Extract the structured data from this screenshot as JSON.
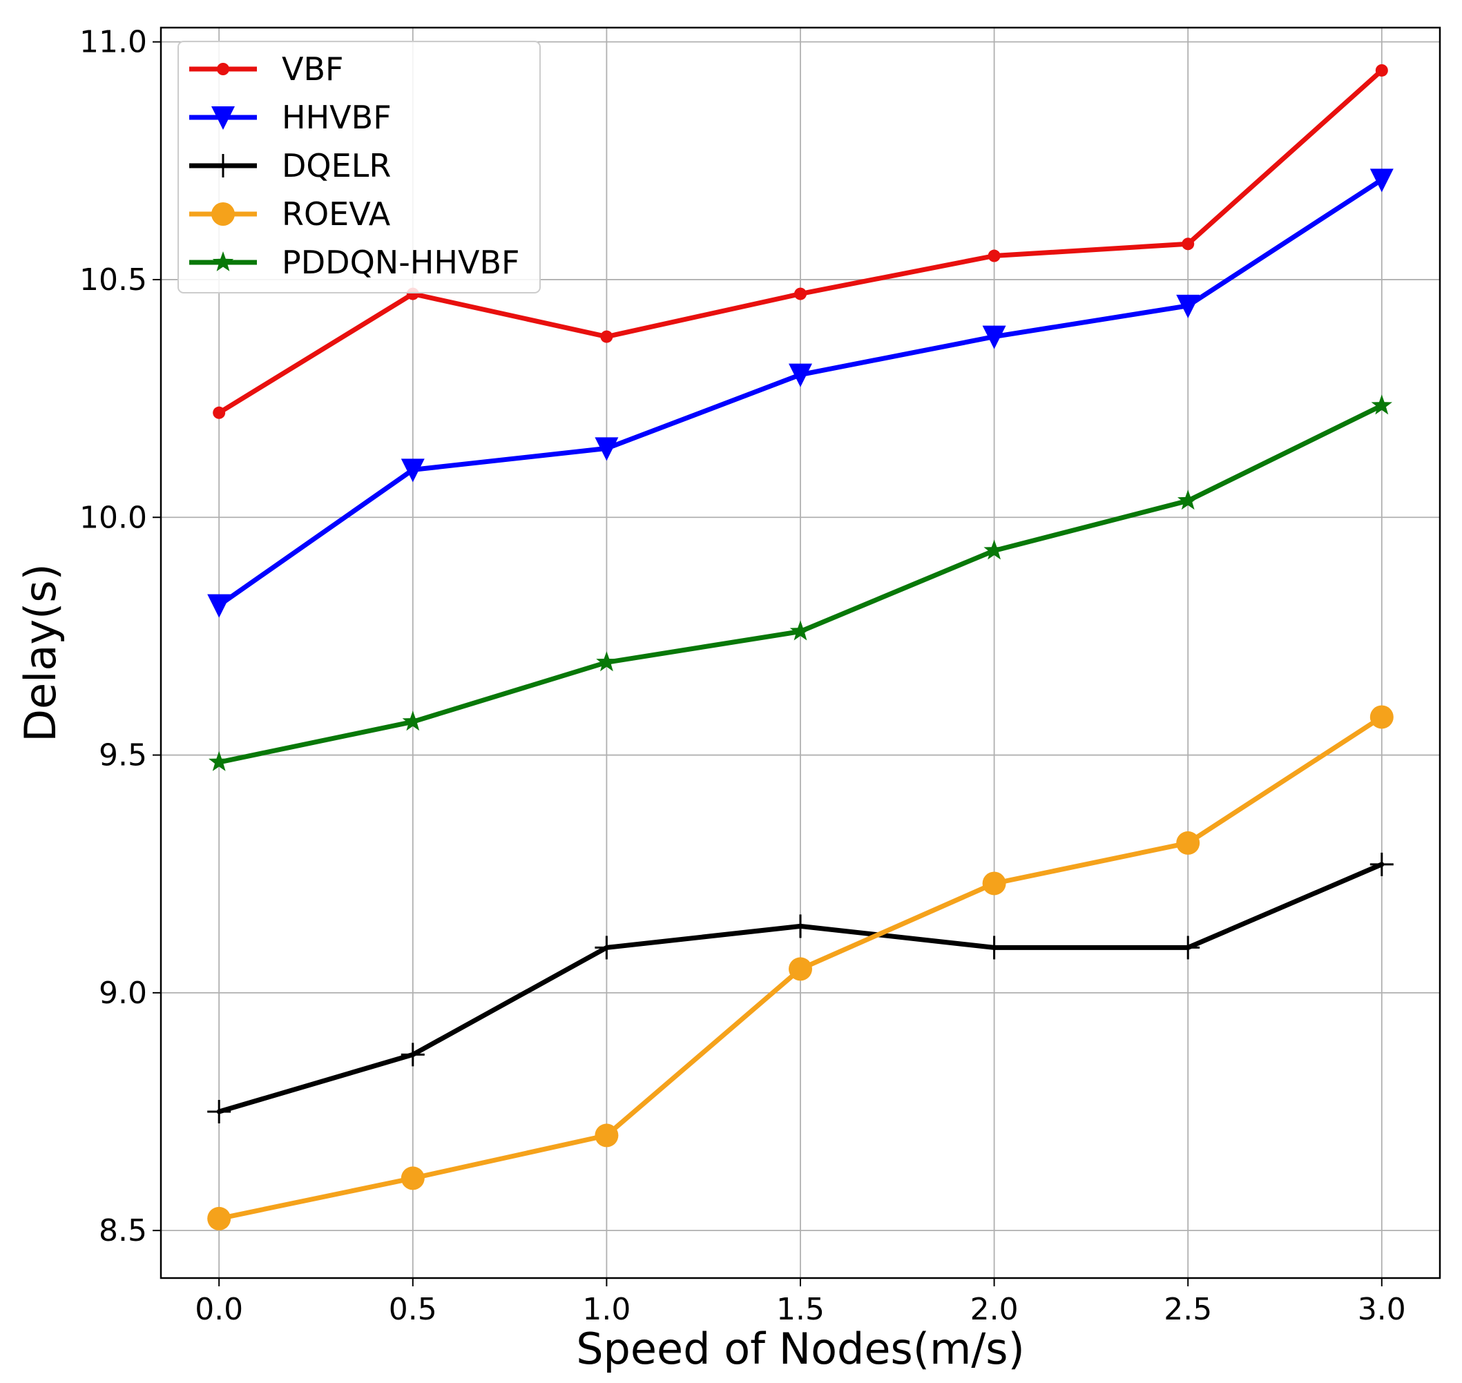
{
  "chart_data": {
    "type": "line",
    "title": "",
    "xlabel": "Speed of Nodes(m/s)",
    "ylabel": "Delay(s)",
    "x": [
      0.0,
      0.5,
      1.0,
      1.5,
      2.0,
      2.5,
      3.0
    ],
    "xticks": [
      "0.0",
      "0.5",
      "1.0",
      "1.5",
      "2.0",
      "2.5",
      "3.0"
    ],
    "yticks": [
      "8.5",
      "9.0",
      "9.5",
      "10.0",
      "10.5",
      "11.0"
    ],
    "xlim": [
      -0.15,
      3.15
    ],
    "ylim": [
      8.4,
      11.03
    ],
    "grid": true,
    "legend_position": "top-left",
    "series": [
      {
        "name": "VBF",
        "color": "#e8100e",
        "marker": "dot",
        "values": [
          10.22,
          10.47,
          10.38,
          10.47,
          10.55,
          10.575,
          10.94
        ]
      },
      {
        "name": "HHVBF",
        "color": "#0000ff",
        "marker": "triangle-down",
        "values": [
          9.815,
          10.1,
          10.145,
          10.3,
          10.38,
          10.445,
          10.71
        ]
      },
      {
        "name": "DQELR",
        "color": "#000000",
        "marker": "plus",
        "values": [
          8.75,
          8.87,
          9.095,
          9.14,
          9.095,
          9.095,
          9.27
        ]
      },
      {
        "name": "ROEVA",
        "color": "#f5a21b",
        "marker": "circle",
        "values": [
          8.525,
          8.61,
          8.7,
          9.05,
          9.23,
          9.315,
          9.58
        ]
      },
      {
        "name": "PDDQN-HHVBF",
        "color": "#087808",
        "marker": "star",
        "values": [
          9.485,
          9.57,
          9.695,
          9.76,
          9.93,
          10.035,
          10.235
        ]
      }
    ]
  }
}
